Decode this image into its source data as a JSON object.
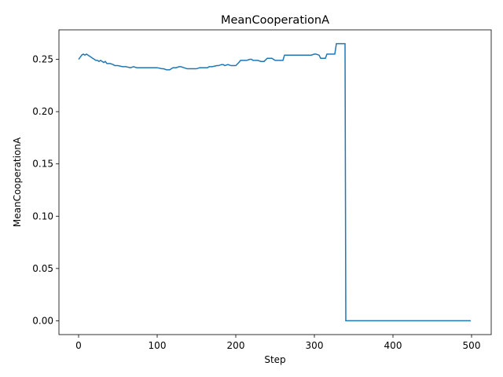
{
  "chart_data": {
    "type": "line",
    "title": "MeanCooperationA",
    "xlabel": "Step",
    "ylabel": "MeanCooperationA",
    "xlim": [
      -25,
      525
    ],
    "ylim": [
      -0.0132,
      0.2782
    ],
    "xticks": [
      0,
      100,
      200,
      300,
      400,
      500
    ],
    "yticks": [
      0.0,
      0.05,
      0.1,
      0.15,
      0.2,
      0.25
    ],
    "xtick_labels": [
      "0",
      "100",
      "200",
      "300",
      "400",
      "500"
    ],
    "ytick_labels": [
      "0.00",
      "0.05",
      "0.10",
      "0.15",
      "0.20",
      "0.25"
    ],
    "grid": false,
    "legend": "none",
    "series": [
      {
        "color": "#1f77b4",
        "x": [
          0,
          2,
          4,
          6,
          8,
          10,
          12,
          14,
          16,
          18,
          20,
          22,
          24,
          26,
          28,
          30,
          32,
          34,
          36,
          40,
          44,
          46,
          50,
          56,
          60,
          66,
          70,
          74,
          80,
          84,
          90,
          100,
          106,
          108,
          112,
          116,
          118,
          120,
          124,
          128,
          130,
          134,
          138,
          140,
          144,
          150,
          154,
          160,
          164,
          166,
          170,
          176,
          178,
          182,
          184,
          186,
          190,
          194,
          196,
          200,
          204,
          206,
          208,
          212,
          214,
          218,
          220,
          222,
          224,
          228,
          232,
          234,
          236,
          240,
          244,
          246,
          250,
          254,
          256,
          260,
          262,
          266,
          270,
          276,
          280,
          286,
          290,
          296,
          300,
          302,
          306,
          308,
          312,
          314,
          316,
          320,
          324,
          326,
          328,
          330,
          334,
          338,
          339,
          340,
          341,
          360,
          400,
          450,
          499
        ],
        "y": [
          0.25,
          0.252,
          0.254,
          0.255,
          0.254,
          0.255,
          0.254,
          0.253,
          0.252,
          0.251,
          0.25,
          0.249,
          0.249,
          0.248,
          0.249,
          0.248,
          0.247,
          0.248,
          0.246,
          0.246,
          0.245,
          0.244,
          0.244,
          0.243,
          0.243,
          0.242,
          0.243,
          0.242,
          0.242,
          0.242,
          0.242,
          0.242,
          0.241,
          0.241,
          0.24,
          0.24,
          0.241,
          0.242,
          0.242,
          0.243,
          0.243,
          0.242,
          0.241,
          0.241,
          0.241,
          0.241,
          0.242,
          0.242,
          0.242,
          0.243,
          0.243,
          0.244,
          0.244,
          0.245,
          0.245,
          0.244,
          0.245,
          0.244,
          0.244,
          0.244,
          0.247,
          0.249,
          0.249,
          0.249,
          0.249,
          0.25,
          0.25,
          0.249,
          0.249,
          0.249,
          0.248,
          0.248,
          0.248,
          0.251,
          0.251,
          0.251,
          0.249,
          0.249,
          0.249,
          0.249,
          0.254,
          0.254,
          0.254,
          0.254,
          0.254,
          0.254,
          0.254,
          0.254,
          0.255,
          0.255,
          0.254,
          0.251,
          0.251,
          0.251,
          0.255,
          0.255,
          0.255,
          0.255,
          0.265,
          0.265,
          0.265,
          0.265,
          0.265,
          0.0,
          0.0,
          0.0,
          0.0,
          0.0,
          0.0
        ]
      }
    ]
  }
}
